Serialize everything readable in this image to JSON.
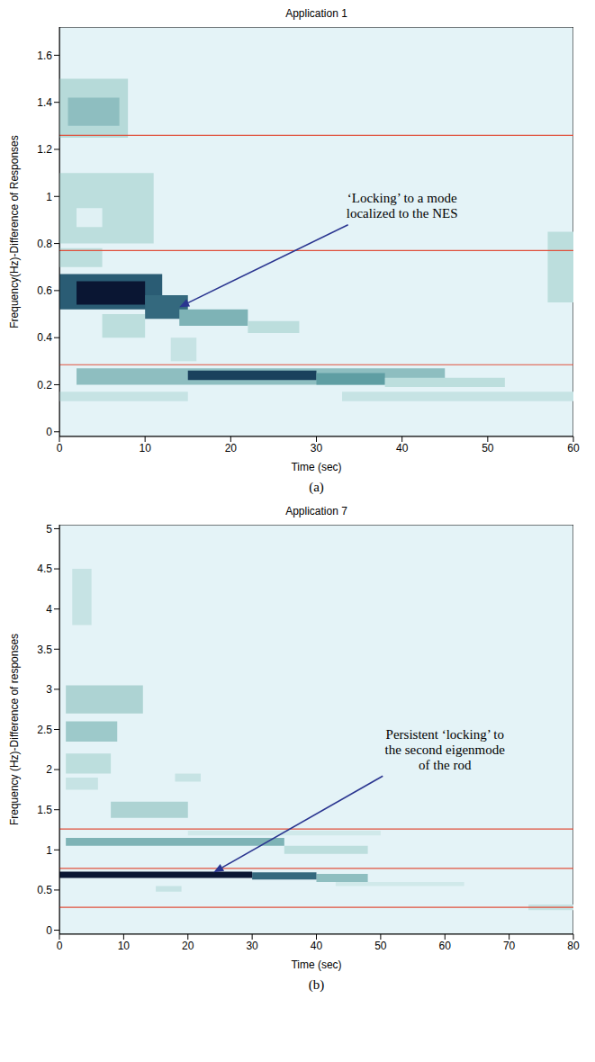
{
  "chart_data": [
    {
      "type": "heatmap",
      "title": "Application 1",
      "label": "(a)",
      "xlabel": "Time (sec)",
      "ylabel": "Frequency(Hz)-Difference of Responses",
      "xlim": [
        0,
        60
      ],
      "ylim": [
        -0.02,
        1.72
      ],
      "xticks": [
        0,
        10,
        20,
        30,
        40,
        50,
        60
      ],
      "yticks": [
        0,
        0.2,
        0.4,
        0.6,
        0.8,
        1,
        1.2,
        1.4,
        1.6
      ],
      "hlines": {
        "values": [
          0.285,
          0.77,
          1.26
        ],
        "color": "#e0503c"
      },
      "cells": [
        {
          "x0": 0,
          "x1": 8,
          "y0": 1.25,
          "y1": 1.5,
          "value": 0.22
        },
        {
          "x0": 1,
          "x1": 7,
          "y0": 1.3,
          "y1": 1.42,
          "value": 0.35
        },
        {
          "x0": 0,
          "x1": 11,
          "y0": 0.8,
          "y1": 1.1,
          "value": 0.2
        },
        {
          "x0": 2,
          "x1": 5,
          "y0": 0.87,
          "y1": 0.95,
          "value": 0.02
        },
        {
          "x0": 0,
          "x1": 5,
          "y0": 0.7,
          "y1": 0.78,
          "value": 0.2
        },
        {
          "x0": 5,
          "x1": 10,
          "y0": 0.4,
          "y1": 0.5,
          "value": 0.2
        },
        {
          "x0": 13,
          "x1": 16,
          "y0": 0.3,
          "y1": 0.4,
          "value": 0.15
        },
        {
          "x0": 0,
          "x1": 12,
          "y0": 0.52,
          "y1": 0.67,
          "value": 0.75
        },
        {
          "x0": 2,
          "x1": 10,
          "y0": 0.54,
          "y1": 0.64,
          "value": 1
        },
        {
          "x0": 10,
          "x1": 15,
          "y0": 0.48,
          "y1": 0.58,
          "value": 0.7
        },
        {
          "x0": 14,
          "x1": 22,
          "y0": 0.45,
          "y1": 0.52,
          "value": 0.4
        },
        {
          "x0": 22,
          "x1": 28,
          "y0": 0.42,
          "y1": 0.47,
          "value": 0.2
        },
        {
          "x0": 0,
          "x1": 15,
          "y0": 0.13,
          "y1": 0.17,
          "value": 0.15
        },
        {
          "x0": 33,
          "x1": 60,
          "y0": 0.13,
          "y1": 0.17,
          "value": 0.15
        },
        {
          "x0": 2,
          "x1": 45,
          "y0": 0.2,
          "y1": 0.27,
          "value": 0.35
        },
        {
          "x0": 15,
          "x1": 30,
          "y0": 0.22,
          "y1": 0.26,
          "value": 0.85
        },
        {
          "x0": 30,
          "x1": 38,
          "y0": 0.2,
          "y1": 0.25,
          "value": 0.5
        },
        {
          "x0": 38,
          "x1": 52,
          "y0": 0.19,
          "y1": 0.23,
          "value": 0.2
        },
        {
          "x0": 57,
          "x1": 60,
          "y0": 0.55,
          "y1": 0.85,
          "value": 0.2
        }
      ],
      "annotation": {
        "text": "‘Locking’ to a mode\nlocalized to the NES",
        "xy": [
          14,
          0.53
        ],
        "xytext": [
          40,
          0.96
        ]
      }
    },
    {
      "type": "heatmap",
      "title": "Application 7",
      "label": "(b)",
      "xlabel": "Time (sec)",
      "ylabel": "Frequency (Hz)-Difference of responses",
      "xlim": [
        0,
        80
      ],
      "ylim": [
        -0.05,
        5.05
      ],
      "xticks": [
        0,
        10,
        20,
        30,
        40,
        50,
        60,
        70,
        80
      ],
      "yticks": [
        0,
        0.5,
        1,
        1.5,
        2,
        2.5,
        3,
        3.5,
        4,
        4.5,
        5
      ],
      "hlines": {
        "values": [
          0.285,
          0.77,
          1.26
        ],
        "color": "#e0503c"
      },
      "cells": [
        {
          "x0": 2,
          "x1": 5,
          "y0": 3.8,
          "y1": 4.5,
          "value": 0.15
        },
        {
          "x0": 1,
          "x1": 13,
          "y0": 2.7,
          "y1": 3.05,
          "value": 0.25
        },
        {
          "x0": 1,
          "x1": 9,
          "y0": 2.35,
          "y1": 2.6,
          "value": 0.3
        },
        {
          "x0": 1,
          "x1": 8,
          "y0": 1.95,
          "y1": 2.2,
          "value": 0.2
        },
        {
          "x0": 1,
          "x1": 6,
          "y0": 1.75,
          "y1": 1.9,
          "value": 0.15
        },
        {
          "x0": 8,
          "x1": 20,
          "y0": 1.4,
          "y1": 1.6,
          "value": 0.25
        },
        {
          "x0": 18,
          "x1": 22,
          "y0": 1.85,
          "y1": 1.95,
          "value": 0.15
        },
        {
          "x0": 20,
          "x1": 50,
          "y0": 1.18,
          "y1": 1.24,
          "value": 0.1
        },
        {
          "x0": 1,
          "x1": 35,
          "y0": 1.05,
          "y1": 1.15,
          "value": 0.4
        },
        {
          "x0": 35,
          "x1": 48,
          "y0": 0.95,
          "y1": 1.05,
          "value": 0.2
        },
        {
          "x0": 15,
          "x1": 19,
          "y0": 0.48,
          "y1": 0.55,
          "value": 0.15
        },
        {
          "x0": 43,
          "x1": 63,
          "y0": 0.55,
          "y1": 0.6,
          "value": 0.1
        },
        {
          "x0": 40,
          "x1": 48,
          "y0": 0.6,
          "y1": 0.7,
          "value": 0.35
        },
        {
          "x0": 30,
          "x1": 40,
          "y0": 0.63,
          "y1": 0.72,
          "value": 0.7
        },
        {
          "x0": 0,
          "x1": 30,
          "y0": 0.65,
          "y1": 0.73,
          "value": 1
        },
        {
          "x0": 73,
          "x1": 80,
          "y0": 0.25,
          "y1": 0.32,
          "value": 0.15
        }
      ],
      "annotation": {
        "text": "Persistent ‘locking’ to\nthe second eigenmode\nof the rod",
        "xy": [
          24,
          0.72
        ],
        "xytext": [
          60,
          2.25
        ]
      }
    }
  ]
}
